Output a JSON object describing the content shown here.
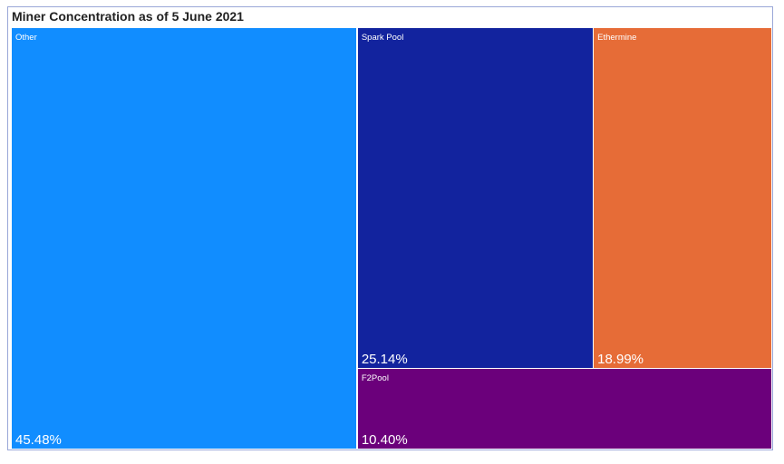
{
  "chart_data": {
    "type": "treemap",
    "title": "Miner Concentration as of 5 June 2021",
    "items": [
      {
        "name": "Other",
        "value": 45.48,
        "label": "45.48%",
        "color": "#118dff"
      },
      {
        "name": "Spark Pool",
        "value": 25.14,
        "label": "25.14%",
        "color": "#12239e"
      },
      {
        "name": "Ethermine",
        "value": 18.99,
        "label": "18.99%",
        "color": "#e66c37"
      },
      {
        "name": "F2Pool",
        "value": 10.4,
        "label": "10.40%",
        "color": "#6b007b"
      }
    ]
  }
}
